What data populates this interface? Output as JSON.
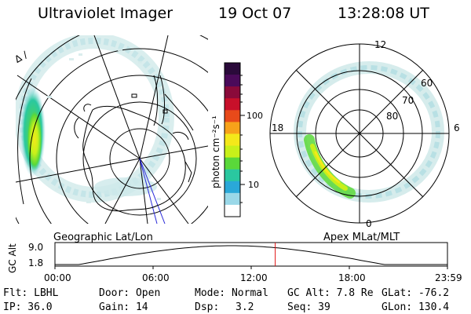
{
  "header": {
    "title": "Ultraviolet Imager",
    "date": "19 Oct 07",
    "time": "13:28:08 UT"
  },
  "left_map": {
    "caption": "Geographic Lat/Lon",
    "corner_glyph": "Δ ∕"
  },
  "colorbar": {
    "unit_label": "photon cm⁻²s⁻¹",
    "tick_100": "100",
    "tick_10": "10",
    "colors": [
      "#2a0a3a",
      "#4a0a5a",
      "#8a0a3a",
      "#c8102a",
      "#e84a1a",
      "#f7a21a",
      "#f4e81a",
      "#c8f01a",
      "#5ad83a",
      "#2ac8a0",
      "#2aa8d8",
      "#9ad8e8",
      "#ffffff"
    ]
  },
  "right_dial": {
    "caption": "Apex MLat/MLT",
    "mlt_12": "12",
    "mlt_18": "18",
    "mlt_6": "6",
    "mlt_0": "0",
    "lat_60": "60",
    "lat_70": "70",
    "lat_80": "80"
  },
  "orbit_plot": {
    "ylabel": "GC Alt",
    "y_max": "9.0",
    "y_min": "1.8",
    "x_ticks": [
      "00:00",
      "06:00",
      "12:00",
      "18:00",
      "23:59"
    ],
    "current_time_hours": 13.47
  },
  "footer": {
    "flt": "Flt: LBHL",
    "door": "Door: Open",
    "mode": "Mode: Normal",
    "gc_alt": "GC Alt: 7.8 Re",
    "glat": "GLat: -76.2",
    "ip": "IP: 36.0",
    "gain": "Gain: 14",
    "dsp_label": "Dsp:",
    "dsp_value": "3.2",
    "seq": "Seq: 39",
    "glon": "GLon: 130.4"
  }
}
